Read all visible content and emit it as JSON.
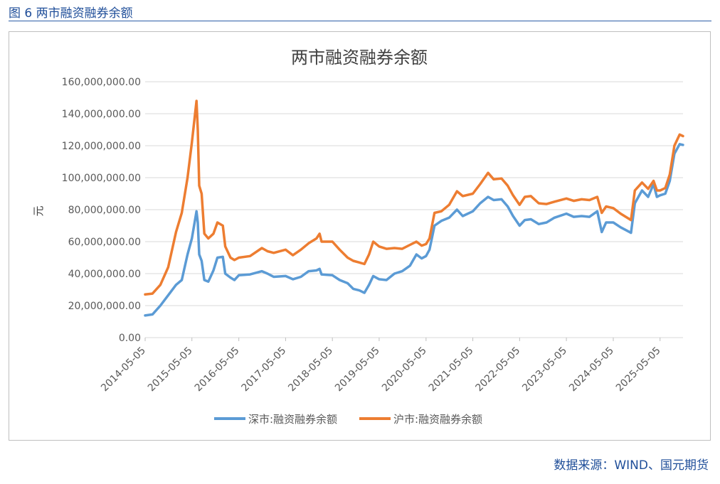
{
  "figure_caption": "图 6  两市融资融券余额",
  "source_note": "数据来源：WIND、国元期货",
  "colors": {
    "shenzhen": "#5b9bd5",
    "shanghai": "#ed7d31",
    "grid": "#d9d9d9",
    "caption": "#1f4e99"
  },
  "chart_data": {
    "type": "line",
    "title": "两市融资融券余额",
    "xlabel": "",
    "ylabel": "元",
    "ylim": [
      0,
      160000000
    ],
    "y_ticks": [
      0,
      20000000,
      40000000,
      60000000,
      80000000,
      100000000,
      120000000,
      140000000,
      160000000
    ],
    "y_tick_labels": [
      "0.00",
      "20,000,000.00",
      "40,000,000.00",
      "60,000,000.00",
      "80,000,000.00",
      "100,000,000.00",
      "120,000,000.00",
      "140,000,000.00",
      "160,000,000.00"
    ],
    "x_range": [
      "2014-05-05",
      "2025-10-31"
    ],
    "x_tick_labels": [
      "2014-05-05",
      "2015-05-05",
      "2016-05-05",
      "2017-05-05",
      "2018-05-05",
      "2019-05-05",
      "2020-05-05",
      "2021-05-05",
      "2022-05-05",
      "2023-05-05",
      "2024-05-05",
      "2025-05-05"
    ],
    "grid": true,
    "legend_position": "bottom",
    "series": [
      {
        "name": "深市:融资融券余额",
        "points": [
          [
            "2014-05-05",
            13800000
          ],
          [
            "2014-07-01",
            14500000
          ],
          [
            "2014-09-01",
            20000000
          ],
          [
            "2014-11-01",
            26500000
          ],
          [
            "2015-01-01",
            33000000
          ],
          [
            "2015-02-15",
            36000000
          ],
          [
            "2015-04-01",
            52000000
          ],
          [
            "2015-05-05",
            62000000
          ],
          [
            "2015-06-10",
            79000000
          ],
          [
            "2015-06-20",
            72000000
          ],
          [
            "2015-07-01",
            52000000
          ],
          [
            "2015-07-20",
            48000000
          ],
          [
            "2015-08-10",
            36000000
          ],
          [
            "2015-09-10",
            35000000
          ],
          [
            "2015-10-20",
            42000000
          ],
          [
            "2015-11-20",
            50000000
          ],
          [
            "2016-01-01",
            50500000
          ],
          [
            "2016-01-20",
            40000000
          ],
          [
            "2016-03-01",
            37500000
          ],
          [
            "2016-04-01",
            36000000
          ],
          [
            "2016-05-05",
            39000000
          ],
          [
            "2016-08-01",
            39500000
          ],
          [
            "2016-11-01",
            41500000
          ],
          [
            "2016-12-15",
            40000000
          ],
          [
            "2017-02-01",
            38000000
          ],
          [
            "2017-05-05",
            38500000
          ],
          [
            "2017-07-01",
            36500000
          ],
          [
            "2017-09-01",
            38000000
          ],
          [
            "2017-11-01",
            41500000
          ],
          [
            "2018-01-01",
            42000000
          ],
          [
            "2018-01-25",
            43000000
          ],
          [
            "2018-02-10",
            39500000
          ],
          [
            "2018-05-05",
            39000000
          ],
          [
            "2018-07-01",
            36000000
          ],
          [
            "2018-09-01",
            34000000
          ],
          [
            "2018-10-15",
            30500000
          ],
          [
            "2018-12-01",
            29500000
          ],
          [
            "2019-01-10",
            28000000
          ],
          [
            "2019-02-15",
            33000000
          ],
          [
            "2019-03-20",
            38500000
          ],
          [
            "2019-05-05",
            36500000
          ],
          [
            "2019-07-01",
            36000000
          ],
          [
            "2019-09-01",
            40000000
          ],
          [
            "2019-11-01",
            41500000
          ],
          [
            "2020-01-01",
            45000000
          ],
          [
            "2020-02-20",
            52000000
          ],
          [
            "2020-04-01",
            49500000
          ],
          [
            "2020-05-05",
            51000000
          ],
          [
            "2020-06-01",
            55000000
          ],
          [
            "2020-07-10",
            70000000
          ],
          [
            "2020-09-01",
            73000000
          ],
          [
            "2020-11-01",
            75000000
          ],
          [
            "2021-01-01",
            80000000
          ],
          [
            "2021-02-15",
            76000000
          ],
          [
            "2021-05-05",
            79000000
          ],
          [
            "2021-07-01",
            84000000
          ],
          [
            "2021-09-01",
            88000000
          ],
          [
            "2021-10-15",
            86000000
          ],
          [
            "2021-12-15",
            86500000
          ],
          [
            "2022-02-01",
            82000000
          ],
          [
            "2022-03-15",
            76000000
          ],
          [
            "2022-05-05",
            70000000
          ],
          [
            "2022-06-15",
            73500000
          ],
          [
            "2022-08-01",
            74000000
          ],
          [
            "2022-10-01",
            71000000
          ],
          [
            "2022-12-01",
            72000000
          ],
          [
            "2023-02-01",
            75000000
          ],
          [
            "2023-05-05",
            77500000
          ],
          [
            "2023-07-01",
            75500000
          ],
          [
            "2023-09-01",
            76000000
          ],
          [
            "2023-11-01",
            75500000
          ],
          [
            "2024-01-01",
            79000000
          ],
          [
            "2024-02-05",
            66000000
          ],
          [
            "2024-03-10",
            72000000
          ],
          [
            "2024-05-05",
            72000000
          ],
          [
            "2024-07-01",
            69000000
          ],
          [
            "2024-09-20",
            65500000
          ],
          [
            "2024-10-20",
            84000000
          ],
          [
            "2024-12-15",
            92000000
          ],
          [
            "2025-02-01",
            88000000
          ],
          [
            "2025-03-15",
            96000000
          ],
          [
            "2025-04-10",
            88000000
          ],
          [
            "2025-05-05",
            89000000
          ],
          [
            "2025-06-15",
            90000000
          ],
          [
            "2025-07-20",
            98000000
          ],
          [
            "2025-08-25",
            115000000
          ],
          [
            "2025-10-05",
            121000000
          ],
          [
            "2025-10-31",
            120500000
          ]
        ]
      },
      {
        "name": "沪市:融资融券余额",
        "points": [
          [
            "2014-05-05",
            27000000
          ],
          [
            "2014-07-01",
            27500000
          ],
          [
            "2014-09-01",
            33000000
          ],
          [
            "2014-11-01",
            44000000
          ],
          [
            "2015-01-01",
            66000000
          ],
          [
            "2015-02-15",
            78000000
          ],
          [
            "2015-04-01",
            100000000
          ],
          [
            "2015-05-05",
            122000000
          ],
          [
            "2015-06-10",
            148000000
          ],
          [
            "2015-06-20",
            130000000
          ],
          [
            "2015-07-01",
            95000000
          ],
          [
            "2015-07-20",
            90000000
          ],
          [
            "2015-08-10",
            65000000
          ],
          [
            "2015-09-10",
            62000000
          ],
          [
            "2015-10-20",
            65000000
          ],
          [
            "2015-11-20",
            72000000
          ],
          [
            "2016-01-01",
            70000000
          ],
          [
            "2016-01-20",
            57000000
          ],
          [
            "2016-03-01",
            50000000
          ],
          [
            "2016-04-01",
            48500000
          ],
          [
            "2016-05-05",
            50000000
          ],
          [
            "2016-08-01",
            51000000
          ],
          [
            "2016-11-01",
            56000000
          ],
          [
            "2016-12-15",
            54000000
          ],
          [
            "2017-02-01",
            53000000
          ],
          [
            "2017-05-05",
            55000000
          ],
          [
            "2017-07-01",
            51500000
          ],
          [
            "2017-09-01",
            55000000
          ],
          [
            "2017-11-01",
            59000000
          ],
          [
            "2018-01-01",
            62000000
          ],
          [
            "2018-01-25",
            65000000
          ],
          [
            "2018-02-10",
            60000000
          ],
          [
            "2018-05-05",
            60000000
          ],
          [
            "2018-07-01",
            55000000
          ],
          [
            "2018-09-01",
            50000000
          ],
          [
            "2018-10-15",
            48000000
          ],
          [
            "2018-12-01",
            47000000
          ],
          [
            "2019-01-10",
            46000000
          ],
          [
            "2019-02-15",
            52000000
          ],
          [
            "2019-03-20",
            60000000
          ],
          [
            "2019-05-05",
            57000000
          ],
          [
            "2019-07-01",
            55500000
          ],
          [
            "2019-09-01",
            56000000
          ],
          [
            "2019-11-01",
            55500000
          ],
          [
            "2020-01-01",
            58000000
          ],
          [
            "2020-02-20",
            60000000
          ],
          [
            "2020-04-01",
            57500000
          ],
          [
            "2020-05-05",
            58500000
          ],
          [
            "2020-06-01",
            62000000
          ],
          [
            "2020-07-10",
            78000000
          ],
          [
            "2020-09-01",
            79000000
          ],
          [
            "2020-11-01",
            83000000
          ],
          [
            "2021-01-01",
            91500000
          ],
          [
            "2021-02-15",
            88500000
          ],
          [
            "2021-05-05",
            90000000
          ],
          [
            "2021-07-01",
            96000000
          ],
          [
            "2021-09-01",
            103000000
          ],
          [
            "2021-10-15",
            99000000
          ],
          [
            "2021-12-15",
            99500000
          ],
          [
            "2022-02-01",
            95000000
          ],
          [
            "2022-03-15",
            89000000
          ],
          [
            "2022-05-05",
            83000000
          ],
          [
            "2022-06-15",
            88000000
          ],
          [
            "2022-08-01",
            88500000
          ],
          [
            "2022-10-01",
            84000000
          ],
          [
            "2022-12-01",
            83500000
          ],
          [
            "2023-02-01",
            85000000
          ],
          [
            "2023-05-05",
            87000000
          ],
          [
            "2023-07-01",
            85500000
          ],
          [
            "2023-09-01",
            86500000
          ],
          [
            "2023-11-01",
            86000000
          ],
          [
            "2024-01-01",
            88000000
          ],
          [
            "2024-02-05",
            78000000
          ],
          [
            "2024-03-10",
            82000000
          ],
          [
            "2024-05-05",
            81000000
          ],
          [
            "2024-07-01",
            77500000
          ],
          [
            "2024-09-20",
            73500000
          ],
          [
            "2024-10-20",
            92000000
          ],
          [
            "2024-12-15",
            97000000
          ],
          [
            "2025-02-01",
            93000000
          ],
          [
            "2025-03-15",
            98000000
          ],
          [
            "2025-04-10",
            92000000
          ],
          [
            "2025-05-05",
            92000000
          ],
          [
            "2025-06-15",
            93500000
          ],
          [
            "2025-07-20",
            102000000
          ],
          [
            "2025-08-25",
            120000000
          ],
          [
            "2025-10-05",
            127000000
          ],
          [
            "2025-10-31",
            126000000
          ]
        ]
      }
    ]
  }
}
